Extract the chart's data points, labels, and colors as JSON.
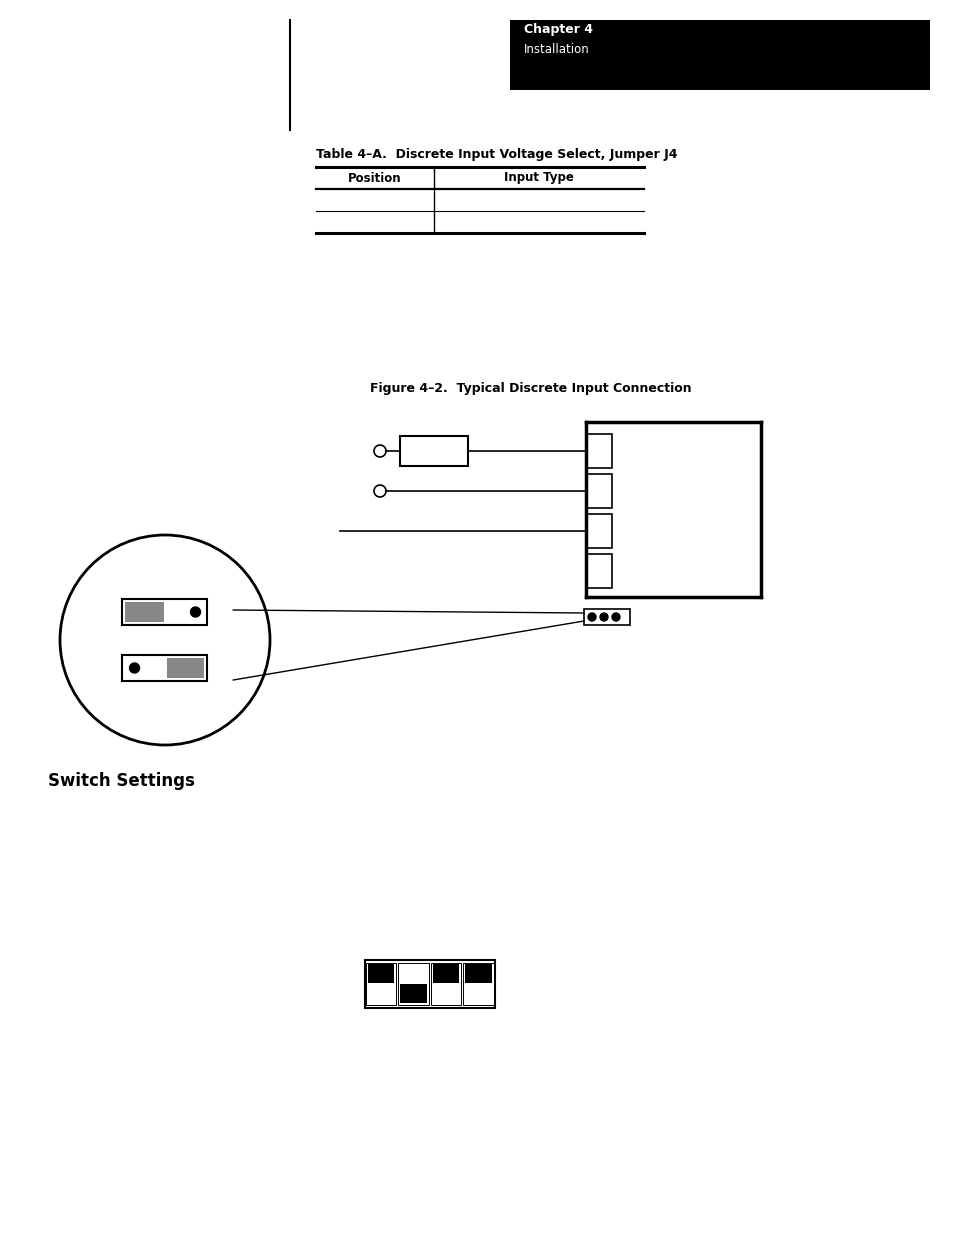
{
  "page_bg": "#ffffff",
  "header_bg": "#000000",
  "header_text_color": "#ffffff",
  "header_chapter": "Chapter 4",
  "header_subtitle": "Installation",
  "table_title": "Table 4–A.  Discrete Input Voltage Select, Jumper J4",
  "table_col1_header": "Position",
  "table_col2_header": "Input Type",
  "figure_title": "Figure 4–2.  Typical Discrete Input Connection",
  "switch_settings_label": "Switch Settings",
  "dip_switch_states": [
    true,
    false,
    true,
    true,
    true,
    true
  ]
}
